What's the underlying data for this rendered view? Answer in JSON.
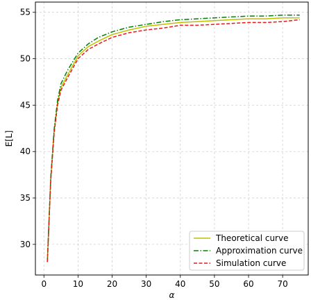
{
  "chart_data": {
    "type": "line",
    "xlabel": "α",
    "ylabel": "E[L]",
    "xlim": [
      -2.5,
      77.5
    ],
    "ylim": [
      26.7,
      56.1
    ],
    "xticks": [
      0,
      10,
      20,
      30,
      40,
      50,
      60,
      70
    ],
    "yticks": [
      30,
      35,
      40,
      45,
      50,
      55
    ],
    "grid": true,
    "legend_position": "lower-right",
    "series": [
      {
        "name": "Theoretical curve",
        "color": "#bfbf00",
        "linestyle": "solid",
        "x": [
          1,
          2,
          3,
          4,
          5,
          7,
          10,
          13,
          16,
          20,
          25,
          30,
          35,
          40,
          45,
          50,
          55,
          60,
          65,
          70,
          75
        ],
        "y": [
          28.1,
          37.0,
          42.2,
          45.2,
          46.9,
          48.3,
          50.3,
          51.3,
          51.9,
          52.6,
          53.1,
          53.5,
          53.7,
          53.9,
          54.0,
          54.1,
          54.2,
          54.3,
          54.3,
          54.4,
          54.4
        ]
      },
      {
        "name": "Approximation curve",
        "color": "#008000",
        "linestyle": "dashdot",
        "x": [
          1,
          2,
          3,
          4,
          5,
          7,
          10,
          13,
          16,
          20,
          25,
          30,
          35,
          40,
          45,
          50,
          55,
          60,
          65,
          70,
          75
        ],
        "y": [
          28.1,
          37.2,
          42.4,
          45.5,
          47.3,
          48.8,
          50.6,
          51.6,
          52.3,
          52.9,
          53.4,
          53.7,
          54.0,
          54.2,
          54.3,
          54.4,
          54.5,
          54.6,
          54.6,
          54.7,
          54.7
        ]
      },
      {
        "name": "Simulation curve",
        "color": "#e41a1c",
        "linestyle": "dashed",
        "x": [
          1,
          2,
          3,
          4,
          5,
          7,
          10,
          13,
          16,
          20,
          25,
          30,
          35,
          40,
          45,
          50,
          55,
          60,
          65,
          70,
          75
        ],
        "y": [
          28.1,
          36.9,
          42.0,
          45.0,
          46.6,
          48.0,
          50.0,
          51.0,
          51.6,
          52.3,
          52.8,
          53.1,
          53.3,
          53.6,
          53.6,
          53.7,
          53.8,
          53.9,
          53.9,
          54.0,
          54.2
        ]
      }
    ]
  }
}
